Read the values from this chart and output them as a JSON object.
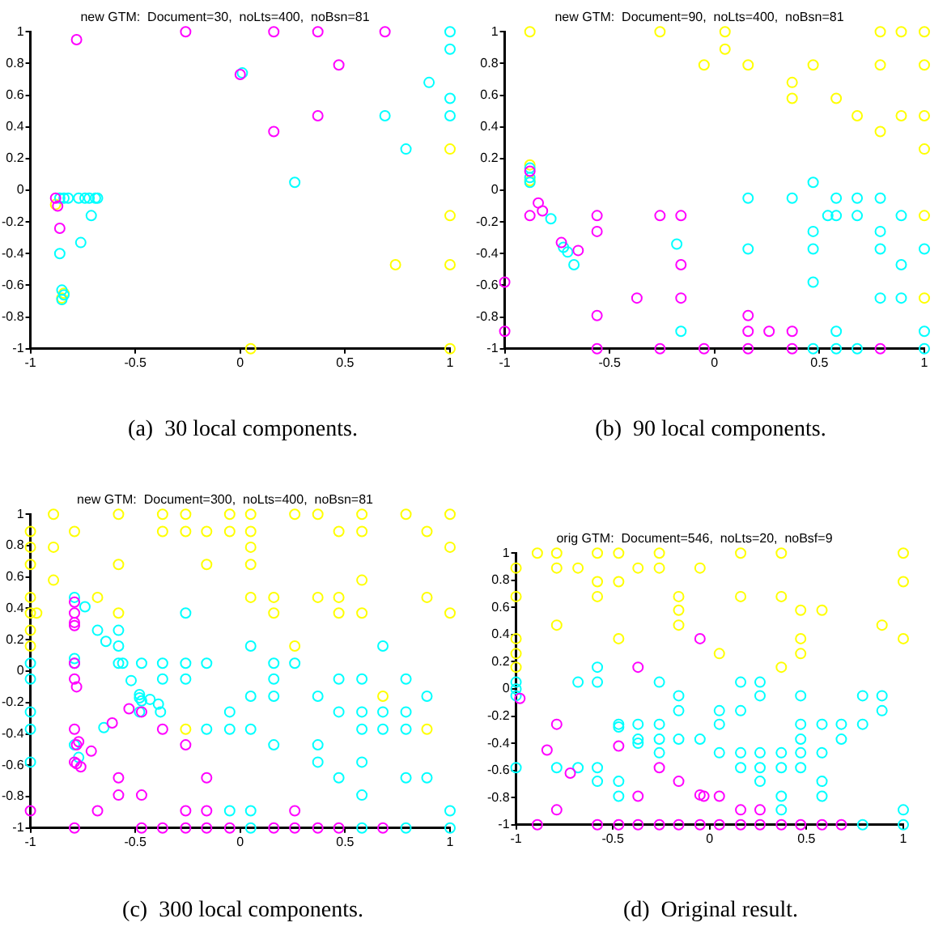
{
  "chart_data": [
    {
      "type": "scatter",
      "title": "new GTM:  Document=30,  noLts=400,  noBsn=81",
      "annotations": [
        "(a)  30 local components."
      ],
      "xlim": [
        -1,
        1
      ],
      "ylim": [
        -1,
        1
      ],
      "xticks": [
        -1,
        -0.5,
        0,
        0.5,
        1
      ],
      "yticks": [
        -1,
        -0.8,
        -0.6,
        -0.4,
        -0.2,
        0,
        0.2,
        0.4,
        0.6,
        0.8,
        1
      ],
      "marker": "circle",
      "series": [
        {
          "color": "#ff00ff",
          "x": [
            -0.78,
            -0.26,
            0.16,
            0.37,
            0.69,
            0.47,
            0,
            0.37,
            0.16,
            -0.88,
            -0.87,
            -0.86
          ],
          "values": [
            0.95,
            1,
            1,
            1,
            1,
            0.79,
            0.73,
            0.47,
            0.37,
            -0.05,
            -0.1,
            -0.24
          ]
        },
        {
          "color": "#00ffff",
          "x": [
            1,
            1,
            0.9,
            1,
            0.69,
            1,
            0.79,
            0.26,
            0.01,
            -0.86,
            -0.84,
            -0.82,
            -0.77,
            -0.74,
            -0.72,
            -0.69,
            -0.68,
            -0.71,
            -0.76,
            -0.86,
            -0.85,
            -0.84,
            -0.85
          ],
          "values": [
            1,
            0.89,
            0.68,
            0.58,
            0.47,
            0.47,
            0.26,
            0.05,
            0.74,
            -0.05,
            -0.05,
            -0.05,
            -0.05,
            -0.05,
            -0.05,
            -0.05,
            -0.05,
            -0.16,
            -0.33,
            -0.4,
            -0.63,
            -0.66,
            -0.69
          ]
        },
        {
          "color": "#ffff00",
          "x": [
            1,
            1,
            1,
            0.74,
            1,
            0.05,
            -0.88,
            -0.84,
            -0.85
          ],
          "values": [
            0.26,
            -0.16,
            -0.47,
            -0.47,
            -1,
            -1,
            -0.09,
            -0.65,
            -0.68
          ]
        }
      ]
    },
    {
      "type": "scatter",
      "title": "new GTM:  Document=90,  noLts=400,  noBsn=81",
      "annotations": [
        "(b)  90 local components."
      ],
      "xlim": [
        -1,
        1
      ],
      "ylim": [
        -1,
        1
      ],
      "xticks": [
        -1,
        -0.5,
        0,
        0.5,
        1
      ],
      "yticks": [
        -1,
        -0.8,
        -0.6,
        -0.4,
        -0.2,
        0,
        0.2,
        0.4,
        0.6,
        0.8,
        1
      ],
      "marker": "circle",
      "series": [
        {
          "color": "#ff00ff",
          "x": [
            -0.88,
            -0.88,
            -0.84,
            -0.82,
            -0.73,
            -0.65,
            -0.56,
            -0.56,
            -0.26,
            -0.16,
            -0.16,
            -0.16,
            -0.37,
            -1,
            -1,
            -0.56,
            -0.56,
            -0.26,
            -0.05,
            0.16,
            0.16,
            0.16,
            0.26,
            0.37,
            0.37,
            0.79
          ],
          "values": [
            0.12,
            -0.16,
            -0.08,
            -0.13,
            -0.33,
            -0.38,
            -0.16,
            -0.26,
            -0.16,
            -0.16,
            -0.47,
            -0.68,
            -0.68,
            -0.58,
            -0.89,
            -0.79,
            -1,
            -1,
            -1,
            -1,
            -0.79,
            -0.89,
            -0.89,
            -0.89,
            -1,
            -1
          ]
        },
        {
          "color": "#00ffff",
          "x": [
            -0.88,
            -0.88,
            -0.88,
            -0.78,
            -0.72,
            -0.7,
            -0.67,
            -0.18,
            -0.16,
            0.16,
            0.16,
            0.37,
            0.47,
            0.47,
            0.47,
            0.47,
            0.47,
            0.54,
            0.58,
            0.58,
            0.58,
            0.58,
            0.68,
            0.68,
            0.68,
            0.79,
            0.79,
            0.79,
            0.79,
            0.89,
            0.89,
            0.89,
            1,
            1,
            1
          ],
          "values": [
            0.14,
            0.08,
            0.05,
            -0.18,
            -0.36,
            -0.39,
            -0.47,
            -0.34,
            -0.89,
            -0.05,
            -0.37,
            -0.05,
            0.05,
            -0.26,
            -0.37,
            -0.58,
            -1,
            -0.16,
            -0.05,
            -0.16,
            -0.89,
            -1,
            -0.05,
            -0.16,
            -1,
            -0.05,
            -0.26,
            -0.37,
            -0.68,
            -0.16,
            -0.47,
            -0.68,
            -0.37,
            -0.89,
            -1
          ]
        },
        {
          "color": "#ffff00",
          "x": [
            -0.88,
            -0.26,
            0.05,
            0.05,
            -0.05,
            0.16,
            0.37,
            0.37,
            0.47,
            0.58,
            0.79,
            0.89,
            1,
            0.79,
            1,
            0.68,
            0.89,
            1,
            0.79,
            1,
            1,
            1,
            -0.88,
            -0.88
          ],
          "values": [
            1,
            1,
            1,
            0.89,
            0.79,
            0.79,
            0.68,
            0.58,
            0.79,
            0.58,
            1,
            1,
            1,
            0.79,
            0.79,
            0.47,
            0.47,
            0.47,
            0.37,
            0.26,
            -0.16,
            -0.68,
            0.16,
            0.06
          ]
        }
      ]
    },
    {
      "type": "scatter",
      "title": "new GTM:  Document=300,  noLts=400,  noBsn=81",
      "annotations": [
        "(c)  300 local components."
      ],
      "xlim": [
        -1,
        1
      ],
      "ylim": [
        -1,
        1
      ],
      "xticks": [
        -1,
        -0.5,
        0,
        0.5,
        1
      ],
      "yticks": [
        -1,
        -0.8,
        -0.6,
        -0.4,
        -0.2,
        0,
        0.2,
        0.4,
        0.6,
        0.8,
        1
      ],
      "marker": "circle",
      "series": [
        {
          "color": "#ff00ff",
          "x": [
            -0.79,
            -0.79,
            -0.79,
            -0.79,
            -0.79,
            -0.79,
            -0.78,
            -0.53,
            -0.47,
            -0.61,
            -0.79,
            -0.37,
            -0.26,
            -0.77,
            -0.78,
            -0.71,
            -0.79,
            -0.78,
            -0.76,
            -0.58,
            -0.16,
            -0.58,
            -0.47,
            -1,
            -0.68,
            -0.26,
            -0.16,
            0.26,
            -0.79,
            -0.47,
            -0.37,
            -0.26,
            -0.16,
            -0.05,
            0.16,
            0.26,
            0.37,
            0.47,
            0.68
          ],
          "values": [
            0.44,
            0.37,
            0.31,
            0.29,
            0.05,
            -0.05,
            -0.1,
            -0.24,
            -0.26,
            -0.33,
            -0.37,
            -0.37,
            -0.47,
            -0.45,
            -0.47,
            -0.51,
            -0.58,
            -0.59,
            -0.61,
            -0.68,
            -0.68,
            -0.79,
            -0.79,
            -0.89,
            -0.89,
            -0.89,
            -0.89,
            -0.89,
            -1,
            -1,
            -1,
            -1,
            -1,
            -1,
            -1,
            -1,
            -1,
            -1,
            -1
          ]
        },
        {
          "color": "#00ffff",
          "x": [
            -0.79,
            -0.74,
            -0.68,
            -0.64,
            -0.58,
            -0.58,
            -0.58,
            -0.56,
            -0.47,
            -0.37,
            -0.26,
            -0.16,
            0.16,
            0.26,
            -0.79,
            -0.79,
            -1,
            -1,
            -0.52,
            -0.37,
            -0.26,
            0.16,
            0.47,
            0.58,
            0.79,
            -0.26,
            0.05,
            0.68,
            -0.48,
            -0.48,
            -0.47,
            -0.43,
            -0.39,
            -0.38,
            -0.48,
            0.05,
            0.16,
            0.37,
            0.89,
            -0.05,
            0.47,
            0.58,
            0.68,
            0.79,
            -1,
            -1,
            -0.16,
            -0.05,
            0.05,
            0.58,
            0.68,
            0.79,
            -0.65,
            -0.79,
            -0.77,
            0.16,
            0.37,
            0.37,
            0.58,
            -1,
            0.47,
            0.79,
            0.89,
            0.58,
            -0.05,
            0.05,
            1,
            0.05,
            0.58,
            0.79,
            1
          ],
          "values": [
            0.47,
            0.41,
            0.26,
            0.19,
            0.26,
            0.16,
            0.05,
            0.05,
            0.05,
            0.05,
            0.05,
            0.05,
            0.05,
            0.05,
            0.08,
            0.05,
            0.05,
            -0.05,
            -0.06,
            -0.05,
            -0.05,
            -0.05,
            -0.05,
            -0.05,
            -0.05,
            0.37,
            0.16,
            0.16,
            -0.15,
            -0.17,
            -0.19,
            -0.18,
            -0.21,
            -0.26,
            -0.26,
            -0.16,
            -0.16,
            -0.16,
            -0.16,
            -0.26,
            -0.26,
            -0.26,
            -0.26,
            -0.26,
            -0.26,
            -0.37,
            -0.37,
            -0.37,
            -0.37,
            -0.37,
            -0.37,
            -0.37,
            -0.36,
            -0.47,
            -0.55,
            -0.47,
            -0.47,
            -0.58,
            -0.58,
            -0.58,
            -0.68,
            -0.68,
            -0.68,
            -0.79,
            -0.89,
            -0.89,
            -0.89,
            -1,
            -1,
            -1,
            -1
          ]
        },
        {
          "color": "#ffff00",
          "x": [
            -0.89,
            -0.58,
            -0.37,
            -0.26,
            -0.05,
            0.05,
            0.26,
            0.37,
            0.58,
            0.79,
            1,
            -1,
            -0.79,
            -0.37,
            -0.26,
            -0.16,
            -0.05,
            0.05,
            0.47,
            0.58,
            0.89,
            -1,
            -0.89,
            0.05,
            1,
            -1,
            -0.58,
            -0.16,
            0.05,
            -0.89,
            0.58,
            -1,
            -0.68,
            0.05,
            0.16,
            0.37,
            0.47,
            0.89,
            -1,
            -0.97,
            -0.58,
            0.16,
            0.47,
            0.58,
            1,
            -1,
            -1,
            0.26,
            0.68,
            -0.26,
            0.89
          ],
          "values": [
            1,
            1,
            1,
            1,
            1,
            1,
            1,
            1,
            1,
            1,
            1,
            0.89,
            0.89,
            0.89,
            0.89,
            0.89,
            0.89,
            0.89,
            0.89,
            0.89,
            0.89,
            0.79,
            0.79,
            0.79,
            0.79,
            0.68,
            0.68,
            0.68,
            0.68,
            0.58,
            0.58,
            0.47,
            0.47,
            0.47,
            0.47,
            0.47,
            0.47,
            0.47,
            0.37,
            0.37,
            0.37,
            0.37,
            0.37,
            0.37,
            0.37,
            0.26,
            0.16,
            0.16,
            -0.16,
            -0.37,
            -0.37
          ]
        }
      ]
    },
    {
      "type": "scatter",
      "title": "orig GTM:  Document=546,  noLts=20,  noBsf=9",
      "annotations": [
        "(d)  Original result."
      ],
      "xlim": [
        -1,
        1
      ],
      "ylim": [
        -1,
        1
      ],
      "xticks": [
        -1,
        -0.5,
        0,
        0.5,
        1
      ],
      "yticks": [
        -1,
        -0.8,
        -0.6,
        -0.4,
        -0.2,
        0,
        0.2,
        0.4,
        0.6,
        0.8,
        1
      ],
      "marker": "circle",
      "series": [
        {
          "color": "#ff00ff",
          "x": [
            -0.98,
            -0.79,
            -0.37,
            -0.05,
            -0.84,
            -0.47,
            -0.72,
            -0.26,
            -0.16,
            -0.37,
            -0.05,
            -0.03,
            0.05,
            -0.79,
            0.16,
            0.26,
            -0.89,
            -0.58,
            -0.47,
            -0.37,
            -0.26,
            -0.16,
            -0.05,
            0.05,
            0.16,
            0.26,
            0.37,
            0.47,
            0.58,
            0.68
          ],
          "values": [
            -0.07,
            -0.26,
            0.16,
            0.37,
            -0.45,
            -0.42,
            -0.62,
            -0.58,
            -0.68,
            -0.79,
            -0.78,
            -0.79,
            -0.79,
            -0.89,
            -0.89,
            -0.89,
            -1,
            -1,
            -1,
            -1,
            -1,
            -1,
            -1,
            -1,
            -1,
            -1,
            -1,
            -1,
            -1,
            -1
          ]
        },
        {
          "color": "#00ffff",
          "x": [
            -1,
            -1,
            -1,
            -0.58,
            -0.68,
            -0.58,
            -0.26,
            0.16,
            0.26,
            -0.16,
            0.26,
            0.47,
            0.79,
            0.89,
            -0.16,
            0.05,
            0.16,
            0.89,
            -0.47,
            -0.37,
            -0.26,
            0.05,
            0.47,
            0.58,
            0.68,
            0.79,
            -0.47,
            -0.37,
            -0.37,
            -0.26,
            -0.16,
            -0.05,
            0.47,
            0.68,
            -0.26,
            0.05,
            0.16,
            0.26,
            0.37,
            0.47,
            0.58,
            -1,
            -0.79,
            -0.68,
            -0.58,
            0.16,
            0.26,
            0.37,
            0.47,
            -0.58,
            -0.47,
            0.26,
            0.58,
            -0.47,
            0.37,
            0.58,
            0.37,
            1,
            0.79,
            1
          ],
          "values": [
            0.05,
            0,
            -0.05,
            0.16,
            0.05,
            0.05,
            0.05,
            0.05,
            0.05,
            -0.05,
            -0.05,
            -0.05,
            -0.05,
            -0.05,
            -0.16,
            -0.16,
            -0.16,
            -0.16,
            -0.26,
            -0.26,
            -0.26,
            -0.26,
            -0.26,
            -0.26,
            -0.26,
            -0.26,
            -0.28,
            -0.37,
            -0.4,
            -0.37,
            -0.37,
            -0.37,
            -0.37,
            -0.37,
            -0.47,
            -0.47,
            -0.47,
            -0.47,
            -0.47,
            -0.47,
            -0.47,
            -0.58,
            -0.58,
            -0.58,
            -0.58,
            -0.58,
            -0.58,
            -0.58,
            -0.58,
            -0.68,
            -0.68,
            -0.68,
            -0.68,
            -0.79,
            -0.79,
            -0.79,
            -0.89,
            -0.89,
            -1,
            -1
          ]
        },
        {
          "color": "#ffff00",
          "x": [
            -0.89,
            -0.79,
            -0.58,
            -0.47,
            -0.26,
            0.16,
            0.37,
            1,
            -1,
            -0.79,
            -0.68,
            -0.37,
            -0.26,
            -0.05,
            -0.58,
            -0.47,
            1,
            -1,
            -0.58,
            -0.16,
            0.16,
            0.37,
            -0.16,
            0.47,
            0.58,
            -0.79,
            -0.16,
            0.89,
            -1,
            -0.47,
            0.47,
            1,
            -1,
            0.05,
            0.47,
            -1,
            0.37
          ],
          "values": [
            1,
            1,
            1,
            1,
            1,
            1,
            1,
            1,
            0.89,
            0.89,
            0.89,
            0.89,
            0.89,
            0.89,
            0.79,
            0.79,
            0.79,
            0.68,
            0.68,
            0.68,
            0.68,
            0.68,
            0.58,
            0.58,
            0.58,
            0.47,
            0.47,
            0.47,
            0.37,
            0.37,
            0.37,
            0.37,
            0.26,
            0.26,
            0.26,
            0.16,
            0.16
          ]
        }
      ]
    }
  ]
}
